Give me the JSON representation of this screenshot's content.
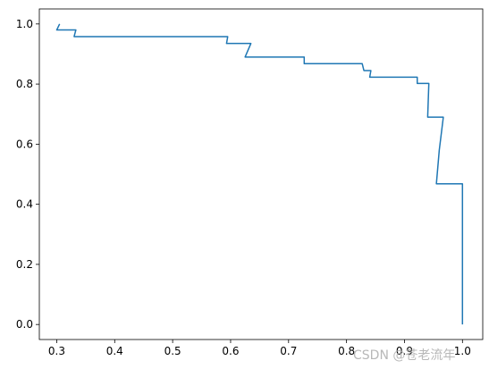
{
  "chart_data": {
    "type": "line",
    "title": "",
    "xlabel": "",
    "ylabel": "",
    "xlim": [
      0.27,
      1.035
    ],
    "ylim": [
      -0.05,
      1.05
    ],
    "x_ticks": [
      0.3,
      0.4,
      0.5,
      0.6,
      0.7,
      0.8,
      0.9,
      1.0
    ],
    "x_tick_labels": [
      "0.3",
      "0.4",
      "0.5",
      "0.6",
      "0.7",
      "0.8",
      "0.9",
      "1.0"
    ],
    "y_ticks": [
      0.0,
      0.2,
      0.4,
      0.6,
      0.8,
      1.0
    ],
    "y_tick_labels": [
      "0.0",
      "0.2",
      "0.4",
      "0.6",
      "0.8",
      "1.0"
    ],
    "grid": false,
    "legend": "none",
    "series": [
      {
        "color": "#1f77b4",
        "x": [
          0.305,
          0.3,
          0.33,
          0.333,
          0.33,
          0.595,
          0.593,
          0.635,
          0.625,
          0.727,
          0.727,
          0.827,
          0.83,
          0.842,
          0.84,
          0.922,
          0.922,
          0.942,
          0.94,
          0.967,
          0.96,
          0.955,
          1.0,
          1.0
        ],
        "y": [
          1.0,
          0.98,
          0.98,
          0.98,
          0.958,
          0.958,
          0.935,
          0.935,
          0.89,
          0.89,
          0.868,
          0.868,
          0.845,
          0.845,
          0.823,
          0.823,
          0.802,
          0.802,
          0.69,
          0.69,
          0.58,
          0.468,
          0.468,
          0.0
        ]
      }
    ]
  },
  "watermark": {
    "text": "CSDN @苍老流年"
  }
}
